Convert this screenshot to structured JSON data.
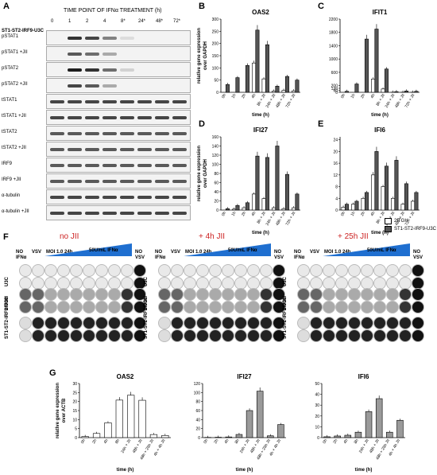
{
  "panels": {
    "A": "A",
    "B": "B",
    "C": "C",
    "D": "D",
    "E": "E",
    "F": "F",
    "G": "G"
  },
  "western": {
    "cell_line": "ST1-ST2-IRF9-U3C",
    "treatment_header": "TIME POINT OF IFNα TREATMENT (h)",
    "timepoints": [
      "0",
      "1",
      "2",
      "4",
      "8*",
      "24*",
      "48*",
      "72*"
    ],
    "rows": [
      {
        "label": "pSTAT1",
        "bands": [
          0,
          0.9,
          0.8,
          0.5,
          0.05,
          0,
          0,
          0
        ]
      },
      {
        "label": "pSTAT1 +JII",
        "bands": [
          0,
          0.7,
          0.6,
          0.3,
          0,
          0,
          0,
          0
        ]
      },
      {
        "label": "pSTAT2",
        "bands": [
          0,
          1,
          0.9,
          0.6,
          0.1,
          0,
          0,
          0
        ]
      },
      {
        "label": "pSTAT2 +JII",
        "bands": [
          0,
          0.8,
          0.7,
          0.3,
          0,
          0,
          0,
          0
        ]
      },
      {
        "label": "tSTAT1",
        "bands": [
          0.8,
          0.8,
          0.8,
          0.8,
          0.8,
          0.8,
          0.8,
          0.8
        ]
      },
      {
        "label": "tSTAT1 +JII",
        "bands": [
          0.8,
          0.8,
          0.8,
          0.8,
          0.8,
          0.8,
          0.8,
          0.8
        ]
      },
      {
        "label": "tSTAT2",
        "bands": [
          0.7,
          0.7,
          0.7,
          0.7,
          0.7,
          0.7,
          0.7,
          0.7
        ]
      },
      {
        "label": "tSTAT2 +JII",
        "bands": [
          0.7,
          0.7,
          0.7,
          0.7,
          0.7,
          0.7,
          0.7,
          0.7
        ]
      },
      {
        "label": "IRF9",
        "bands": [
          0.7,
          0.7,
          0.7,
          0.7,
          0.7,
          0.7,
          0.7,
          0.7
        ]
      },
      {
        "label": "IRF9 +JII",
        "bands": [
          0.7,
          0.7,
          0.7,
          0.7,
          0.7,
          0.7,
          0.7,
          0.7
        ]
      },
      {
        "label": "α-tubulin",
        "bands": [
          0.8,
          0.8,
          0.8,
          0.8,
          0.8,
          0.8,
          0.8,
          0.8
        ]
      },
      {
        "label": "α-tubulin +JII",
        "bands": [
          0.8,
          0.8,
          0.8,
          0.8,
          0.8,
          0.8,
          0.8,
          0.8
        ]
      }
    ]
  },
  "chart_data": [
    {
      "panel": "B",
      "type": "bar",
      "title": "OAS2",
      "ylabel": "relative gene expression over GAPDH",
      "xlabel": "time (h)",
      "ylim": [
        0,
        300
      ],
      "yticks": [
        0,
        50,
        100,
        150,
        200,
        250,
        300
      ],
      "categories": [
        "0h",
        "1h",
        "2h",
        "4h",
        "8h + JII",
        "24h + JII",
        "48h + JII",
        "72h + JII"
      ],
      "series": [
        {
          "name": "2fTGH",
          "values": [
            0,
            0,
            0,
            120,
            55,
            5,
            8,
            6
          ]
        },
        {
          "name": "ST1-ST2-IRF9-U3C",
          "values": [
            32,
            60,
            110,
            255,
            195,
            25,
            65,
            50
          ]
        }
      ]
    },
    {
      "panel": "C",
      "type": "bar",
      "title": "IFIT1",
      "ylabel": "",
      "xlabel": "time (h)",
      "ylim": [
        0,
        2200
      ],
      "yticks": [
        0,
        30,
        60,
        90,
        120,
        150,
        200,
        400,
        600,
        800,
        1000,
        1200,
        1400,
        1600,
        1800,
        2000,
        2200
      ],
      "categories": [
        "0h",
        "1h",
        "2h",
        "4h",
        "8h + JII",
        "24h + JII",
        "48h + JII",
        "72h + JII"
      ],
      "series": [
        {
          "name": "2fTGH",
          "values": [
            0,
            0,
            0,
            400,
            100,
            5,
            5,
            5
          ]
        },
        {
          "name": "ST1-ST2-IRF9-U3C",
          "values": [
            30,
            250,
            1600,
            1900,
            700,
            20,
            40,
            30
          ]
        }
      ]
    },
    {
      "panel": "D",
      "type": "bar",
      "title": "IFI27",
      "ylabel": "relative gene expression over GAPDH",
      "xlabel": "time (h)",
      "ylim": [
        0,
        160
      ],
      "yticks": [
        0,
        20,
        40,
        60,
        80,
        100,
        120,
        140,
        160
      ],
      "categories": [
        "0h",
        "1h",
        "2h",
        "4h",
        "8h + JII",
        "24h + JII",
        "48h + JII",
        "72h + JII"
      ],
      "series": [
        {
          "name": "2fTGH",
          "values": [
            0,
            2,
            5,
            35,
            25,
            5,
            3,
            5
          ]
        },
        {
          "name": "ST1-ST2-IRF9-U3C",
          "values": [
            3,
            10,
            16,
            118,
            115,
            140,
            78,
            35
          ]
        }
      ]
    },
    {
      "panel": "E",
      "type": "bar",
      "title": "IFI6",
      "ylabel": "",
      "xlabel": "time (h)",
      "ylim": [
        0,
        25
      ],
      "yticks": [
        0,
        2,
        4,
        6,
        8,
        10,
        12,
        14,
        16,
        18,
        20,
        22,
        24
      ],
      "categories": [
        "0h",
        "1h",
        "2h",
        "4h",
        "8h + JII",
        "24h + JII",
        "48h + JII",
        "72h + JII"
      ],
      "series": [
        {
          "name": "2fTGH",
          "values": [
            1,
            2,
            4,
            12,
            8,
            4,
            2,
            3
          ]
        },
        {
          "name": "ST1-ST2-IRF9-U3C",
          "values": [
            2,
            3,
            6,
            20,
            15,
            17,
            9,
            6
          ]
        }
      ],
      "legend": [
        "2fTGH",
        "ST1-ST2-IRF9-U3C"
      ]
    },
    {
      "panel": "G",
      "type": "bar",
      "title": "OAS2",
      "ylabel": "relative gene expression over ACTB",
      "xlabel": "time (h)",
      "ylim": [
        0,
        30
      ],
      "yticks": [
        0,
        5,
        10,
        15,
        20,
        25,
        30
      ],
      "categories": [
        "0h",
        "2h",
        "4h",
        "8h",
        "24h + JII",
        "48h + JII",
        "48h + 25h JII",
        "4h + 4h JII"
      ],
      "series": [
        {
          "name": "",
          "values": [
            0.6,
            2.3,
            8.2,
            20.8,
            23.5,
            20.7,
            1.7,
            1.2
          ]
        }
      ]
    },
    {
      "panel": "G",
      "type": "bar",
      "title": "IFI27",
      "ylabel": "",
      "xlabel": "time (h)",
      "ylim": [
        0,
        120
      ],
      "yticks": [
        0,
        20,
        40,
        60,
        80,
        100,
        120
      ],
      "categories": [
        "0h",
        "2h",
        "4h",
        "8h",
        "24h + JII",
        "48h + JII",
        "48h + 25h JII",
        "4h + 4h JII"
      ],
      "series": [
        {
          "name": "",
          "values": [
            0.5,
            0.8,
            1.5,
            7,
            60,
            103,
            4,
            29
          ]
        }
      ]
    },
    {
      "panel": "G",
      "type": "bar",
      "title": "IFI6",
      "ylabel": "",
      "xlabel": "time (h)",
      "ylim": [
        0,
        50
      ],
      "yticks": [
        0,
        10,
        20,
        30,
        40,
        50
      ],
      "categories": [
        "0h",
        "2h",
        "4h",
        "8h",
        "24h + JII",
        "48h + JII",
        "48h + 25h JII",
        "4h + 4h JII"
      ],
      "series": [
        {
          "name": "",
          "values": [
            0.8,
            1.5,
            2.2,
            5,
            24,
            36,
            5,
            16
          ]
        }
      ]
    }
  ],
  "plaque": {
    "panels": [
      {
        "title": "no JII",
        "color": "#cc2222"
      },
      {
        "title": "+ 4h JII",
        "color": "#cc2222"
      },
      {
        "title": "+ 25h JII",
        "color": "#cc2222"
      }
    ],
    "no_ifn": "NO IFNα",
    "vsv": "VSV",
    "moi": "MOI 1.0 24h",
    "ifn_dose": "50U/mL IFNα",
    "no_vsv": "NO VSV",
    "rows": [
      "U3C",
      "2fTGH",
      "ST1-ST2-IRF9-U3C"
    ]
  },
  "legend": {
    "s1": "2fTGH",
    "s2": "ST1-ST2-IRF9-U3C",
    "c1": "#ffffff",
    "c2": "#555555"
  },
  "colors": {
    "white": "#ffffff",
    "dark": "#555555",
    "gray": "#9a9a9a",
    "tri": "#1f6fd0"
  }
}
